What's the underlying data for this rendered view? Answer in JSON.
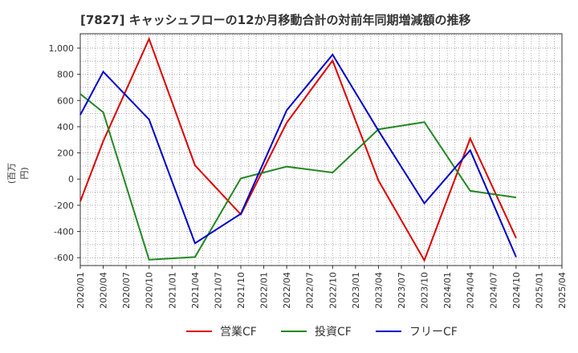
{
  "chart_data": {
    "type": "line",
    "title": "[7827]  キャッシュフローの12か月移動合計の対前年同期増減額の推移",
    "ylabel": "(百万円)",
    "xlabel": "",
    "ylim": [
      -660,
      1110
    ],
    "yticks": [
      -600,
      -400,
      -200,
      0,
      200,
      400,
      600,
      800,
      1000
    ],
    "ytick_labels": [
      "-600",
      "-400",
      "-200",
      "0",
      "200",
      "400",
      "600",
      "800",
      "1,000"
    ],
    "categories": [
      "2020/01",
      "2020/04",
      "2020/07",
      "2020/10",
      "2021/01",
      "2021/04",
      "2021/07",
      "2021/10",
      "2022/01",
      "2022/04",
      "2022/07",
      "2022/10",
      "2023/01",
      "2023/04",
      "2023/07",
      "2023/10",
      "2024/01",
      "2024/04",
      "2024/07",
      "2024/10",
      "2025/01",
      "2025/04"
    ],
    "series": [
      {
        "name": "営業CF",
        "color": "#dd0000",
        "values": [
          -170,
          290,
          null,
          1070,
          null,
          105,
          null,
          -270,
          null,
          430,
          null,
          905,
          null,
          -10,
          null,
          -620,
          null,
          310,
          null,
          -450,
          null,
          null
        ]
      },
      {
        "name": "投資CF",
        "color": "#228822",
        "values": [
          650,
          510,
          null,
          -615,
          null,
          -595,
          null,
          5,
          null,
          95,
          null,
          50,
          null,
          380,
          null,
          435,
          null,
          -90,
          null,
          -140,
          null,
          null
        ]
      },
      {
        "name": "フリーCF",
        "color": "#0000cc",
        "values": [
          490,
          820,
          null,
          455,
          null,
          -490,
          null,
          -265,
          null,
          525,
          null,
          950,
          null,
          370,
          null,
          -185,
          null,
          220,
          null,
          -595,
          null,
          null
        ]
      }
    ],
    "grid": true
  }
}
